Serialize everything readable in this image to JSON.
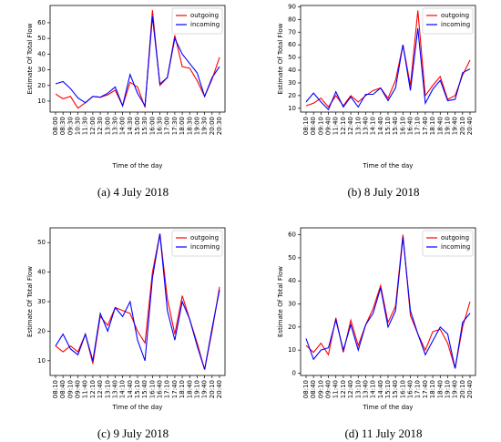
{
  "chart_data": [
    {
      "type": "line",
      "caption": "(a) 4 July 2018",
      "xlabel": "Time of the day",
      "ylabel": "Estimate Of Total Flow",
      "categories": [
        "08:00",
        "08:30",
        "09:30",
        "10:30",
        "11:30",
        "12:00",
        "12:30",
        "13:00",
        "13:30",
        "14:00",
        "14:30",
        "15:00",
        "15:30",
        "16:00",
        "16:30",
        "17:00",
        "17:30",
        "18:00",
        "18:30",
        "19:00",
        "19:30",
        "20:00",
        "20:30"
      ],
      "series": [
        {
          "name": "outgoing",
          "color": "#ff0000",
          "values": [
            14.5,
            11.5,
            13,
            5.5,
            9,
            13,
            12.5,
            14,
            17,
            7,
            22,
            19,
            6,
            68,
            20,
            25,
            52,
            32,
            31,
            23,
            13,
            24,
            38
          ]
        },
        {
          "name": "incoming",
          "color": "#0000ff",
          "values": [
            21,
            22.5,
            18,
            12,
            9,
            13,
            12.5,
            15,
            19,
            7,
            27,
            15,
            7,
            64,
            21,
            25,
            50,
            40,
            34,
            28,
            13,
            25,
            32
          ]
        }
      ],
      "ylim": [
        3,
        71
      ],
      "yticks": [
        10,
        20,
        30,
        40,
        50,
        60
      ],
      "legend": "upper right"
    },
    {
      "type": "line",
      "caption": "(b) 8 July 2018",
      "xlabel": "Time of the day",
      "ylabel": "Estimate Of Total Flow",
      "categories": [
        "08:10",
        "08:40",
        "09:10",
        "09:40",
        "11:40",
        "12:10",
        "12:40",
        "13:10",
        "13:40",
        "14:10",
        "14:40",
        "15:10",
        "15:40",
        "16:10",
        "16:40",
        "17:10",
        "17:40",
        "18:10",
        "18:40",
        "19:10",
        "19:40",
        "20:10",
        "20:40"
      ],
      "series": [
        {
          "name": "outgoing",
          "color": "#ff0000",
          "values": [
            12,
            14,
            18,
            11,
            20,
            12,
            20,
            15,
            20,
            24,
            26,
            18,
            32,
            60,
            28,
            87,
            20,
            28,
            35,
            17,
            20,
            36,
            48
          ]
        },
        {
          "name": "incoming",
          "color": "#0000ff",
          "values": [
            15,
            22,
            15,
            9,
            23,
            11,
            19,
            11,
            21,
            21,
            26,
            16,
            26,
            60,
            24,
            73,
            14,
            25,
            32,
            16,
            17,
            38,
            41
          ]
        }
      ],
      "ylim": [
        7,
        91
      ],
      "yticks": [
        10,
        20,
        30,
        40,
        50,
        60,
        70,
        80,
        90
      ],
      "legend": "upper right"
    },
    {
      "type": "line",
      "caption": "(c) 9 July 2018",
      "xlabel": "Time of the day",
      "ylabel": "Estimate Of Total Flow",
      "categories": [
        "08:10",
        "08:40",
        "09:10",
        "09:40",
        "11:40",
        "12:10",
        "12:40",
        "13:10",
        "13:40",
        "14:10",
        "14:40",
        "15:10",
        "15:40",
        "16:10",
        "16:40",
        "17:10",
        "17:40",
        "18:10",
        "18:40",
        "19:10",
        "19:40",
        "20:10",
        "20:40"
      ],
      "series": [
        {
          "name": "outgoing",
          "color": "#ff0000",
          "values": [
            15,
            13,
            15,
            13,
            19,
            9,
            25,
            22,
            28,
            27,
            26,
            20,
            16,
            40,
            53,
            31,
            19,
            32,
            24,
            16,
            7,
            20,
            35
          ]
        },
        {
          "name": "incoming",
          "color": "#0000ff",
          "values": [
            15,
            19,
            14,
            12,
            19,
            10,
            26,
            20,
            28,
            25,
            30,
            17,
            10,
            38,
            53,
            27,
            17,
            30,
            24,
            15,
            7,
            21,
            34
          ]
        }
      ],
      "ylim": [
        5,
        55
      ],
      "yticks": [
        10,
        20,
        30,
        40,
        50
      ],
      "legend": "upper right"
    },
    {
      "type": "line",
      "caption": "(d) 11 July 2018",
      "xlabel": "Time of the day",
      "ylabel": "Estimate Of Total Flow",
      "categories": [
        "08:10",
        "08:40",
        "09:10",
        "09:40",
        "11:40",
        "12:10",
        "12:40",
        "13:10",
        "13:40",
        "14:10",
        "14:40",
        "15:10",
        "15:40",
        "16:10",
        "16:40",
        "17:10",
        "17:40",
        "18:10",
        "18:40",
        "19:10",
        "19:40",
        "20:10",
        "20:40"
      ],
      "series": [
        {
          "name": "outgoing",
          "color": "#ff0000",
          "values": [
            12,
            9,
            13,
            8,
            24,
            9,
            23,
            12,
            21,
            28,
            38,
            22,
            29,
            60,
            25,
            17,
            10,
            18,
            19,
            13,
            2,
            20,
            31
          ]
        },
        {
          "name": "incoming",
          "color": "#0000ff",
          "values": [
            15,
            6,
            10,
            11,
            23,
            10,
            21,
            10,
            21,
            26,
            37,
            20,
            27,
            59,
            27,
            17,
            8,
            14,
            20,
            17,
            2,
            22,
            26
          ]
        }
      ],
      "ylim": [
        -1,
        63
      ],
      "yticks": [
        0,
        10,
        20,
        30,
        40,
        50,
        60
      ],
      "legend": "upper right"
    }
  ]
}
